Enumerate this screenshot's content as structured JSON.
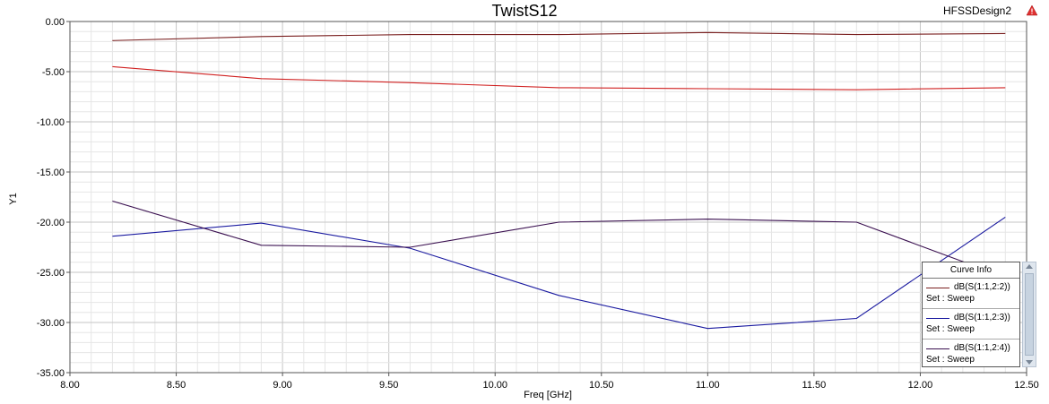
{
  "chart_data": {
    "type": "line",
    "title": "TwistS12",
    "design_name": "HFSSDesign2",
    "xlabel": "Freq [GHz]",
    "ylabel": "Y1",
    "xlim": [
      8.0,
      12.5
    ],
    "ylim": [
      -35.0,
      0.0
    ],
    "x_ticks": [
      "8.00",
      "8.50",
      "9.00",
      "9.50",
      "10.00",
      "10.50",
      "11.00",
      "11.50",
      "12.00",
      "12.50"
    ],
    "y_ticks": [
      "0.00",
      "-5.00",
      "-10.00",
      "-15.00",
      "-20.00",
      "-25.00",
      "-30.00",
      "-35.00"
    ],
    "grid": true,
    "legend_title": "Curve Info",
    "legend_placement": "bottom-right",
    "series": [
      {
        "name": "dB(S(1:1,2:2))",
        "set": "Set : Sweep",
        "color": "#7a2020",
        "x": [
          8.2,
          8.9,
          9.6,
          10.3,
          11.0,
          11.7,
          12.4
        ],
        "y": [
          -1.9,
          -1.5,
          -1.3,
          -1.3,
          -1.1,
          -1.3,
          -1.2
        ]
      },
      {
        "name": "dB(S(1:1,2:3))",
        "set": "Set : Sweep",
        "color": "#1a1aa0",
        "x": [
          8.2,
          8.9,
          9.6,
          10.3,
          11.0,
          11.7,
          12.4
        ],
        "y": [
          -21.4,
          -20.1,
          -22.6,
          -27.3,
          -30.6,
          -29.6,
          -19.5
        ]
      },
      {
        "name": "dB(S(1:1,2:4))",
        "set": "Set : Sweep",
        "color": "#3a1050",
        "x": [
          8.2,
          8.9,
          9.6,
          10.3,
          11.0,
          11.7,
          12.4
        ],
        "y": [
          -17.9,
          -22.3,
          -22.5,
          -20.0,
          -19.7,
          -20.0,
          -25.5
        ]
      },
      {
        "name": "",
        "set": "",
        "color": "#d02020",
        "x": [
          8.2,
          8.9,
          9.6,
          10.3,
          11.0,
          11.7,
          12.4
        ],
        "y": [
          -4.5,
          -5.7,
          -6.1,
          -6.6,
          -6.7,
          -6.8,
          -6.6
        ]
      }
    ]
  }
}
